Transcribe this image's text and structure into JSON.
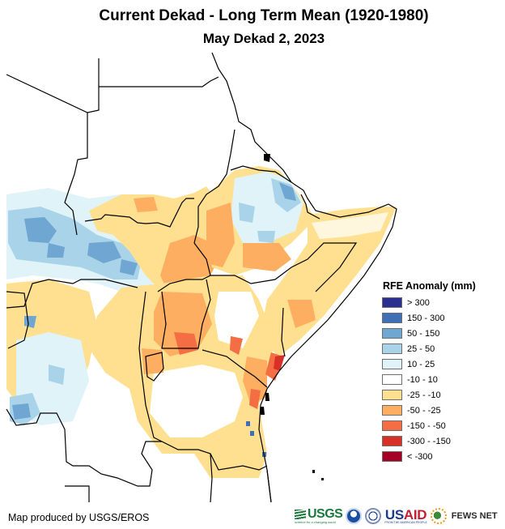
{
  "header": {
    "title": "Current Dekad - Long Term Mean (1920-1980)",
    "subtitle": "May Dekad 2, 2023"
  },
  "map": {
    "region": "East Africa",
    "variable": "Rainfall Estimate (RFE) anomaly",
    "units": "mm",
    "period": "May Dekad 2, 2023",
    "baseline": "Long Term Mean (1920-1980)"
  },
  "legend": {
    "title": "RFE Anomaly (mm)",
    "classes": [
      {
        "label": "> 300",
        "color": "#2b2f8f"
      },
      {
        "label": "150 - 300",
        "color": "#3f6fb5"
      },
      {
        "label": "50 - 150",
        "color": "#6fa6d2"
      },
      {
        "label": "25 - 50",
        "color": "#a8d3e8"
      },
      {
        "label": "10 - 25",
        "color": "#e0f3f8"
      },
      {
        "label": "-10 - 10",
        "color": "#ffffff"
      },
      {
        "label": "-25 - -10",
        "color": "#fee090"
      },
      {
        "label": "-50 - -25",
        "color": "#fdae61"
      },
      {
        "label": "-150 - -50",
        "color": "#f46d43"
      },
      {
        "label": "-300 - -150",
        "color": "#d73027"
      },
      {
        "label": "< -300",
        "color": "#a50026"
      }
    ]
  },
  "footer": {
    "credit": "Map produced by USGS/EROS",
    "logos": {
      "usgs": "USGS",
      "usgs_tagline": "science for a changing world",
      "noaa": "NOAA",
      "doc": "U.S. Department of Commerce",
      "usaid_us": "US",
      "usaid_aid": "AID",
      "usaid_tagline": "FROM THE AMERICAN PEOPLE",
      "fews": "FEWS NET"
    }
  }
}
